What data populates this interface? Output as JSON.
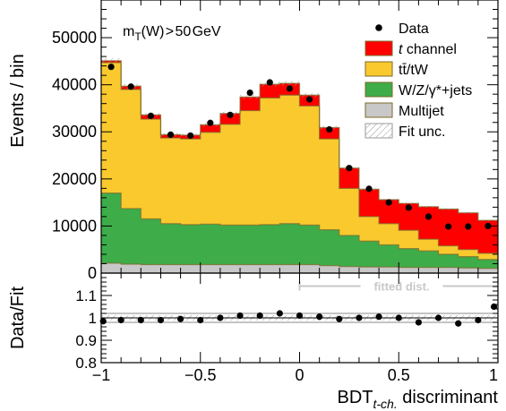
{
  "chart_data": [
    {
      "type": "area",
      "stacked": true,
      "x_bin_edges": [
        -1.0,
        -0.9,
        -0.8,
        -0.7,
        -0.6,
        -0.5,
        -0.4,
        -0.3,
        -0.2,
        -0.1,
        0.0,
        0.1,
        0.2,
        0.3,
        0.4,
        0.5,
        0.6,
        0.7,
        0.8,
        0.9,
        1.0
      ],
      "ylabel": "Events / bin",
      "ylim": [
        0,
        58000
      ],
      "y_ticks": [
        0,
        10000,
        20000,
        30000,
        40000,
        50000
      ],
      "y_tick_labels": [
        "0",
        "10000",
        "20000",
        "30000",
        "40000",
        "50000"
      ],
      "annotation": {
        "main": "m",
        "sub": "T",
        "rest": "(W) > 50 GeV"
      },
      "legend_position": "top-right",
      "series": [
        {
          "name": "Multijet",
          "color": "#c8c8c8",
          "values": [
            2100,
            1900,
            1800,
            1800,
            1800,
            1800,
            1800,
            1800,
            1800,
            1800,
            1800,
            1600,
            1400,
            1300,
            1300,
            1200,
            1200,
            1200,
            1100,
            1000
          ]
        },
        {
          "name": "W/Z/γ*+jets",
          "color": "#3dac49",
          "values": [
            14900,
            11800,
            9700,
            8700,
            8500,
            8600,
            8400,
            8400,
            8500,
            8700,
            8400,
            7600,
            6600,
            5500,
            4700,
            4000,
            3500,
            2800,
            2400,
            1900
          ]
        },
        {
          "name": "tt̄/tW",
          "color": "#f9c92e",
          "values": [
            27700,
            25300,
            21200,
            18200,
            18200,
            19500,
            21400,
            24300,
            26900,
            27300,
            25300,
            19300,
            10000,
            5200,
            4500,
            3900,
            2500,
            1800,
            1500,
            1300
          ]
        },
        {
          "name": "t channel",
          "color": "#ff0000",
          "italic_t": true,
          "values": [
            400,
            700,
            900,
            700,
            800,
            1600,
            2300,
            2900,
            2900,
            2500,
            2300,
            2400,
            4300,
            5800,
            5100,
            5700,
            6900,
            7800,
            7800,
            7000
          ]
        },
        {
          "name": "Fit unc.",
          "hatched": true
        }
      ],
      "data": {
        "name": "Data",
        "x": [
          -0.95,
          -0.85,
          -0.75,
          -0.65,
          -0.55,
          -0.45,
          -0.35,
          -0.25,
          -0.15,
          -0.05,
          0.05,
          0.15,
          0.25,
          0.35,
          0.45,
          0.55,
          0.65,
          0.75,
          0.85,
          0.95
        ],
        "y": [
          43800,
          39600,
          33400,
          29400,
          29200,
          31900,
          33600,
          38300,
          40500,
          39200,
          36900,
          30500,
          22300,
          17900,
          15000,
          13900,
          12000,
          9900,
          9900,
          10000
        ]
      }
    },
    {
      "type": "scatter",
      "ylabel": "Data/Fit",
      "xlabel": {
        "main": "BDT",
        "sub": "t-ch.",
        "rest": " discriminant"
      },
      "xlim": [
        -1,
        1
      ],
      "x_ticks": [
        -1,
        -0.5,
        0,
        0.5,
        1
      ],
      "x_tick_labels": [
        "−1",
        "−0.5",
        "0",
        "0.5",
        "1"
      ],
      "ylim": [
        0.8,
        1.2
      ],
      "y_ticks": [
        0.8,
        0.9,
        1.0,
        1.1
      ],
      "y_tick_labels": [
        "0.8",
        "0.9",
        "1",
        "1.1"
      ],
      "fitted_region": {
        "label": "fitted dist.",
        "x_range": [
          0,
          1
        ]
      },
      "x": [
        -0.99,
        -0.9,
        -0.8,
        -0.7,
        -0.6,
        -0.5,
        -0.4,
        -0.3,
        -0.2,
        -0.1,
        0.0,
        0.1,
        0.2,
        0.3,
        0.4,
        0.5,
        0.6,
        0.7,
        0.8,
        0.9,
        0.98
      ],
      "y": [
        0.985,
        0.99,
        0.99,
        0.99,
        0.995,
        0.99,
        1.0,
        1.01,
        1.01,
        1.02,
        1.01,
        1.005,
        0.995,
        1.0,
        1.005,
        1.0,
        0.98,
        1.0,
        0.975,
        0.99,
        1.05
      ]
    }
  ]
}
